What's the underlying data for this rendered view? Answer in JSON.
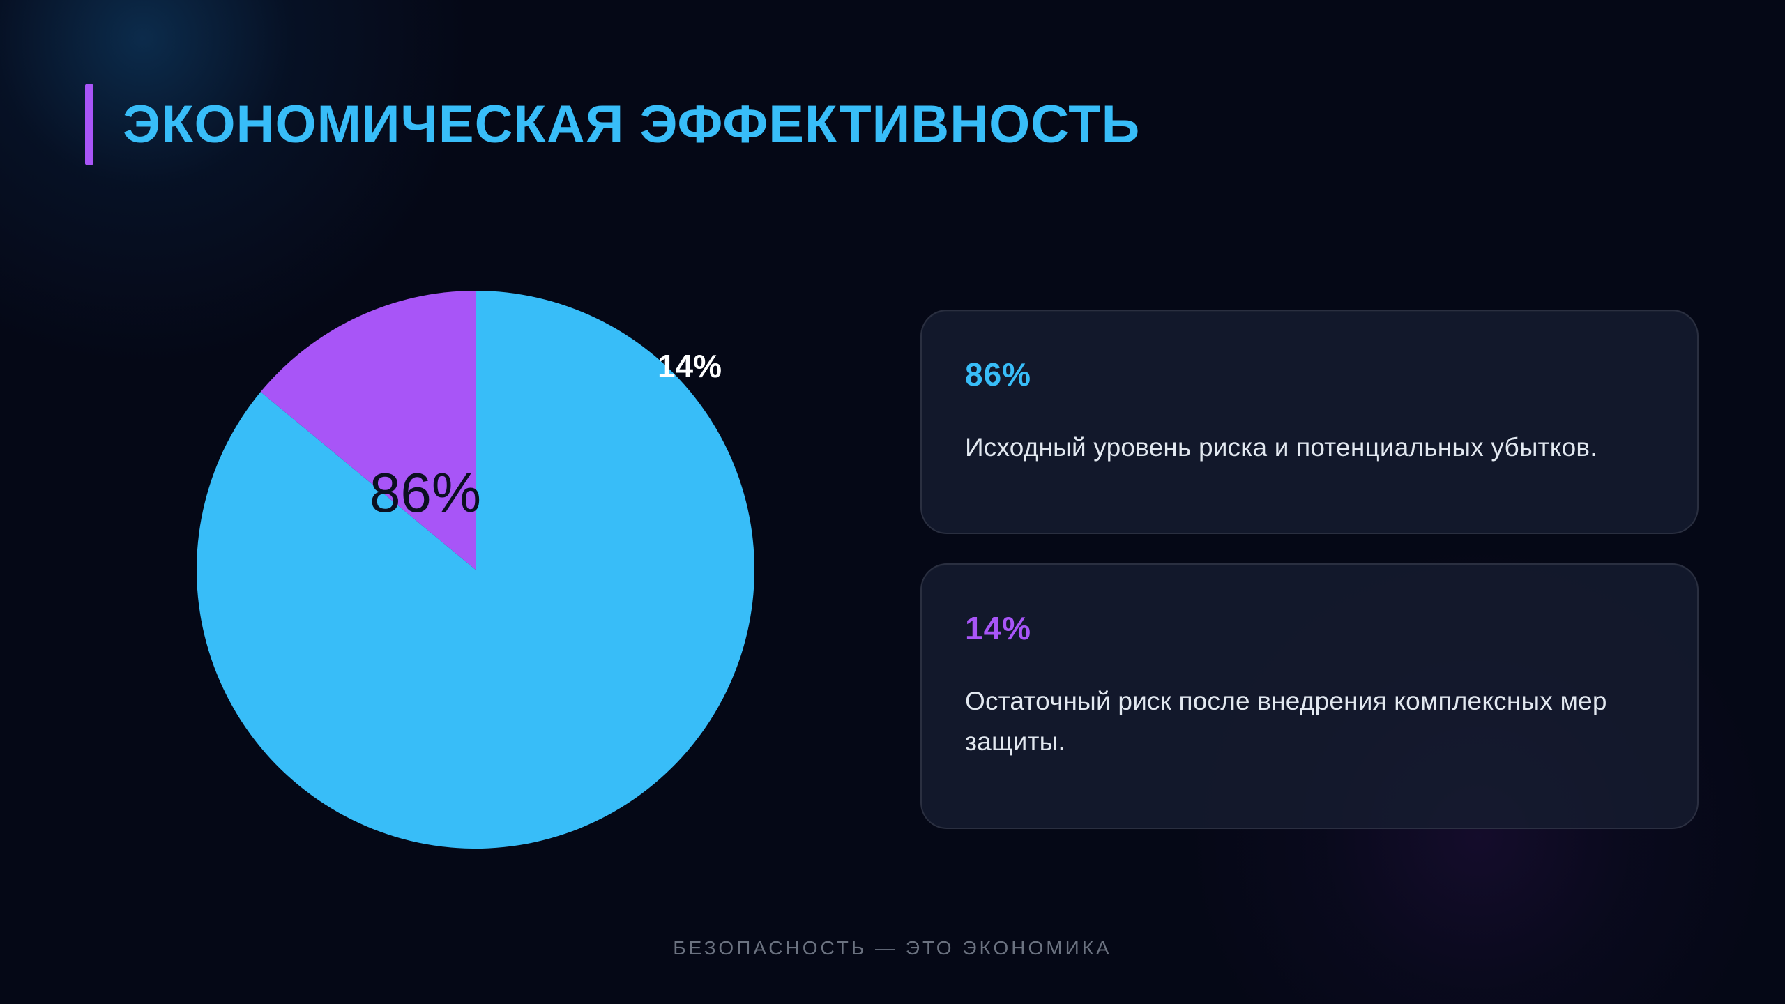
{
  "title": "ЭКОНОМИЧЕСКАЯ ЭФФЕКТИВНОСТЬ",
  "colors": {
    "background": "#050816",
    "accent_blue": "#38bdf8",
    "accent_purple": "#a855f7",
    "card_text": "#e2e8f0",
    "muted_text": "#6b7280"
  },
  "chart_data": {
    "type": "pie",
    "categories": [
      "Исходный уровень риска и потенциальных убытков.",
      "Остаточный риск после внедрения комплексных мер защиты."
    ],
    "values": [
      86,
      14
    ],
    "data_labels": [
      "86%",
      "14%"
    ],
    "colors": [
      "#38bdf8",
      "#a855f7"
    ],
    "unit": "%"
  },
  "cards": [
    {
      "value": "86%",
      "text": "Исходный уровень риска и потенциальных убытков.",
      "color": "#38bdf8"
    },
    {
      "value": "14%",
      "text": "Остаточный риск после внедрения комплексных мер защиты.",
      "color": "#a855f7"
    }
  ],
  "footer": "БЕЗОПАСНОСТЬ — ЭТО ЭКОНОМИКА"
}
